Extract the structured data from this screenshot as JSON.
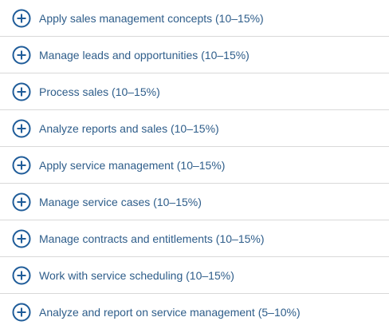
{
  "accordion": {
    "accent_color": "#1f5c99",
    "items": [
      {
        "label": "Apply sales management concepts (10–15%)",
        "icon": "plus-circle-icon"
      },
      {
        "label": "Manage leads and opportunities (10–15%)",
        "icon": "plus-circle-icon"
      },
      {
        "label": "Process sales (10–15%)",
        "icon": "plus-circle-icon"
      },
      {
        "label": "Analyze reports and sales (10–15%)",
        "icon": "plus-circle-icon"
      },
      {
        "label": "Apply service management (10–15%)",
        "icon": "plus-circle-icon"
      },
      {
        "label": "Manage service cases (10–15%)",
        "icon": "plus-circle-icon"
      },
      {
        "label": "Manage contracts and entitlements (10–15%)",
        "icon": "plus-circle-icon"
      },
      {
        "label": "Work with service scheduling (10–15%)",
        "icon": "plus-circle-icon"
      },
      {
        "label": "Analyze and report on service management (5–10%)",
        "icon": "plus-circle-icon"
      }
    ]
  }
}
